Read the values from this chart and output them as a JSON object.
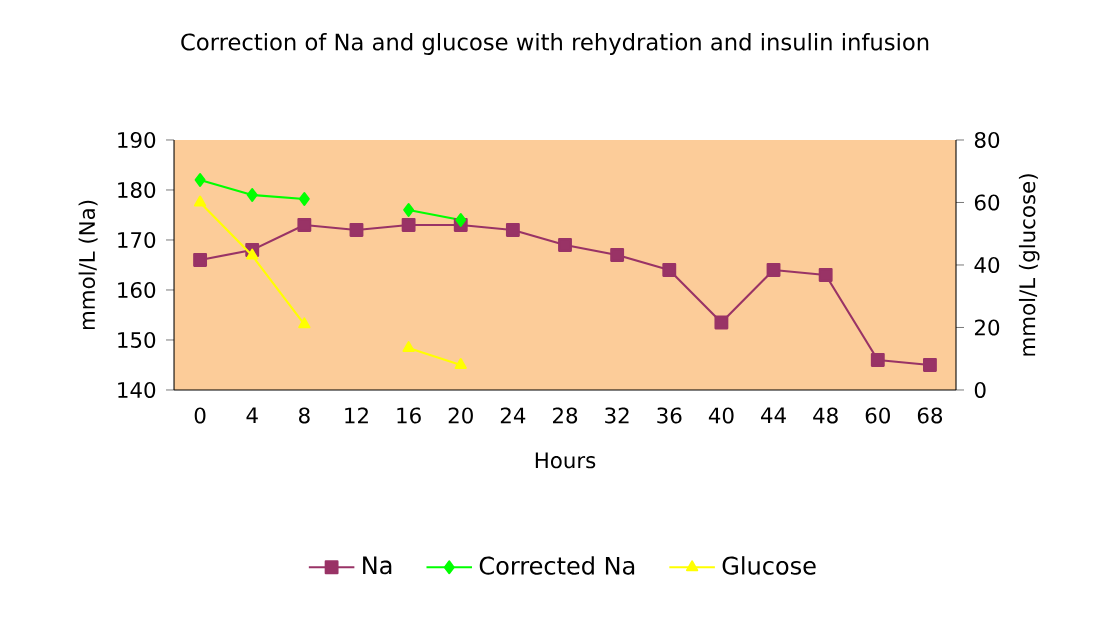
{
  "chart_data": {
    "type": "line",
    "title": "Correction of Na and glucose with rehydration and insulin infusion",
    "xlabel": "Hours",
    "ylabel": "mmol/L (Na)",
    "y2label": "mmol/L (glucose)",
    "categories": [
      "0",
      "4",
      "8",
      "12",
      "16",
      "20",
      "24",
      "28",
      "32",
      "36",
      "40",
      "44",
      "48",
      "60",
      "68"
    ],
    "series": [
      {
        "name": "Na",
        "color": "#993366",
        "marker": "square",
        "values": [
          166,
          168,
          173,
          172,
          173,
          173,
          172,
          169,
          167,
          164,
          153.5,
          164,
          163,
          146,
          145
        ]
      },
      {
        "name": "Corrected Na",
        "color": "#00ff00",
        "marker": "diamond",
        "values": [
          182,
          179,
          178.2,
          null,
          176,
          174,
          null,
          null,
          null,
          null,
          null,
          null,
          null,
          null,
          null
        ]
      },
      {
        "name": "Glucose",
        "color": "#ffff00",
        "marker": "triangle",
        "axis": "y2",
        "values": [
          60,
          43,
          21,
          null,
          13.4,
          8,
          null,
          null,
          null,
          null,
          null,
          null,
          null,
          null,
          null
        ]
      }
    ],
    "ylim": [
      140,
      190
    ],
    "yticks": [
      140,
      150,
      160,
      170,
      180,
      190
    ],
    "y2lim": [
      0,
      80
    ],
    "y2ticks": [
      0,
      20,
      40,
      60,
      80
    ],
    "legend": "bottom"
  }
}
